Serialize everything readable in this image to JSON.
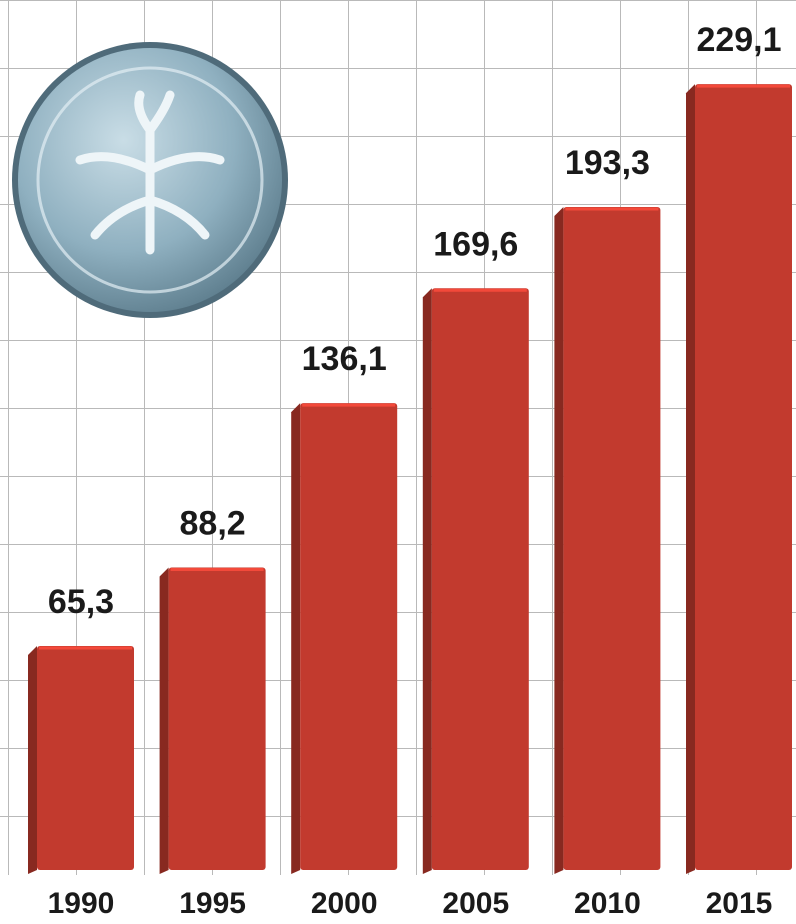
{
  "chart_data": {
    "type": "bar",
    "categories": [
      "1990",
      "1995",
      "2000",
      "2005",
      "2010",
      "2015"
    ],
    "values": [
      65.3,
      88.2,
      136.1,
      169.6,
      193.3,
      229.1
    ],
    "value_labels": [
      "65,3",
      "88,2",
      "136,1",
      "169,6",
      "193,3",
      "229,1"
    ],
    "color": "#c23a2e"
  }
}
